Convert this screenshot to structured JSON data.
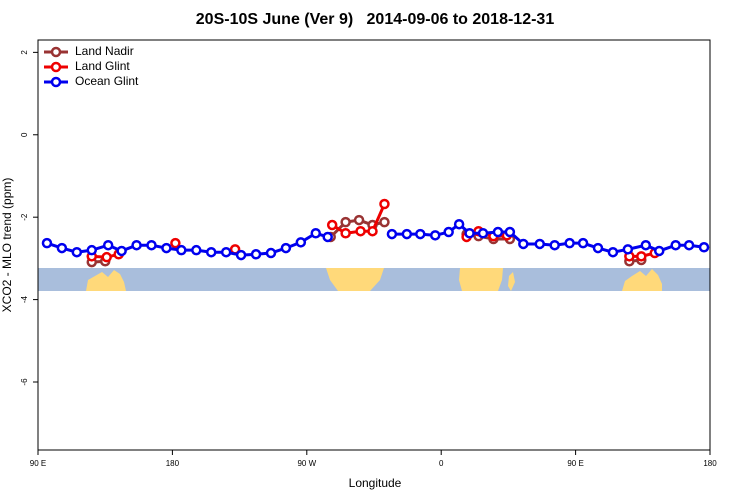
{
  "chart_data": {
    "type": "line",
    "title": "20S-10S June (Ver 9)   2014-09-06 to 2018-12-31",
    "x_label": "Longitude",
    "y_label": "XCO2 - MLO trend (ppm)",
    "xlim": [
      90,
      540
    ],
    "ylim": [
      -7.65,
      2.3
    ],
    "xticks": [
      {
        "value": 90,
        "label": "90 E"
      },
      {
        "value": 180,
        "label": "180"
      },
      {
        "value": 270,
        "label": "90 W"
      },
      {
        "value": 360,
        "label": "0"
      },
      {
        "value": 450,
        "label": "90 E"
      },
      {
        "value": 540,
        "label": "180"
      }
    ],
    "yticks": [
      2,
      0,
      -2,
      -4,
      -6
    ],
    "grid": false,
    "legend": "top-left",
    "series": [
      {
        "name": "Land Nadir",
        "color": "#993333",
        "x": [
          126,
          135,
          null,
          286,
          296,
          305,
          314,
          322,
          null,
          377,
          385,
          395,
          406,
          null,
          486,
          494
        ],
        "values": [
          -3.09,
          -3.07,
          null,
          -2.48,
          -2.12,
          -2.07,
          -2.19,
          -2.12,
          null,
          -2.41,
          -2.46,
          -2.53,
          -2.53,
          null,
          -3.07,
          -3.04
        ]
      },
      {
        "name": "Land Glint",
        "color": "#ee0000",
        "x": [
          126,
          136,
          144,
          null,
          182,
          null,
          222,
          null,
          287,
          296,
          306,
          314,
          322,
          null,
          377,
          385,
          395,
          404,
          null,
          486,
          494,
          503
        ],
        "values": [
          -2.95,
          -2.97,
          -2.9,
          null,
          -2.63,
          null,
          -2.78,
          null,
          -2.19,
          -2.39,
          -2.34,
          -2.34,
          -1.68,
          null,
          -2.48,
          -2.34,
          -2.46,
          -2.44,
          null,
          -2.95,
          -2.95,
          -2.87
        ]
      },
      {
        "name": "Ocean Glint",
        "color": "#0000ee",
        "x": [
          96,
          106,
          116,
          126,
          137,
          146,
          156,
          166,
          176,
          186,
          196,
          206,
          216,
          226,
          236,
          246,
          256,
          266,
          276,
          284,
          null,
          327,
          337,
          346,
          356,
          365,
          372,
          379,
          388,
          398,
          406,
          415,
          426,
          436,
          446,
          455,
          465,
          475,
          485,
          497,
          506,
          517,
          526,
          536
        ],
        "values": [
          -2.63,
          -2.75,
          -2.85,
          -2.8,
          -2.68,
          -2.82,
          -2.68,
          -2.68,
          -2.75,
          -2.8,
          -2.8,
          -2.85,
          -2.85,
          -2.92,
          -2.9,
          -2.87,
          -2.75,
          -2.61,
          -2.39,
          -2.48,
          null,
          -2.41,
          -2.41,
          -2.41,
          -2.44,
          -2.36,
          -2.17,
          -2.39,
          -2.39,
          -2.36,
          -2.36,
          -2.65,
          -2.65,
          -2.68,
          -2.63,
          -2.63,
          -2.75,
          -2.85,
          -2.78,
          -2.68,
          -2.82,
          -2.68,
          -2.68,
          -2.73
        ]
      }
    ]
  }
}
